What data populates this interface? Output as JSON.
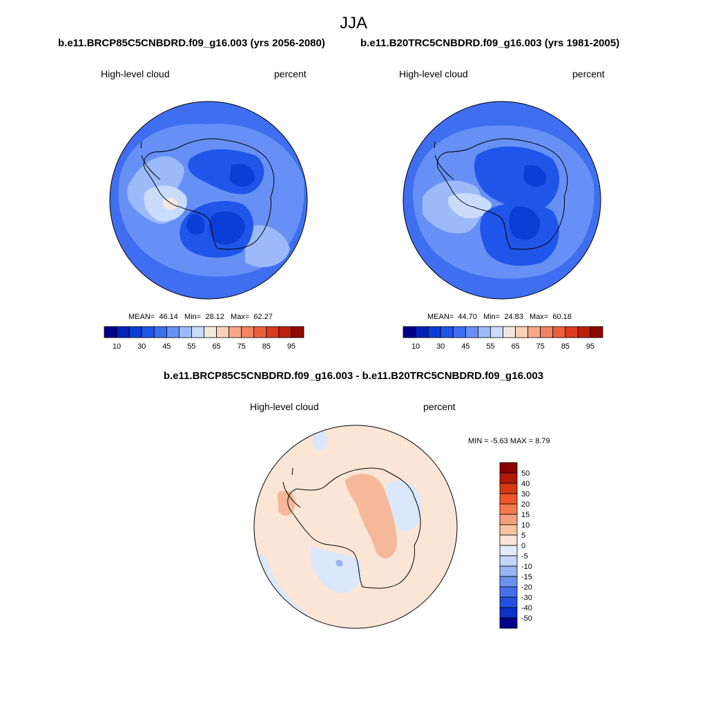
{
  "season": "JJA",
  "panels": [
    {
      "title": "b.e11.BRCP85C5CNBDRD.f09_g16.003 (yrs 2056-2080)",
      "variable": "High-level cloud",
      "units": "percent",
      "stats": {
        "mean_label": "MEAN=",
        "mean": "46.14",
        "min_label": "Min=",
        "min": "28.12",
        "max_label": "Max=",
        "max": "62.27"
      }
    },
    {
      "title": "b.e11.B20TRC5CNBDRD.f09_g16.003 (yrs 1981-2005)",
      "variable": "High-level cloud",
      "units": "percent",
      "stats": {
        "mean_label": "MEAN=",
        "mean": "44.70",
        "min_label": "Min=",
        "min": "24.83",
        "max_label": "Max=",
        "max": "60.18"
      }
    }
  ],
  "diff": {
    "title": "b.e11.BRCP85C5CNBDRD.f09_g16.003 - b.e11.B20TRC5CNBDRD.f09_g16.003",
    "variable": "High-level cloud",
    "units": "percent",
    "stats": "MIN =  -5.63 MAX =   8.79"
  },
  "colorbar_main": {
    "colors": [
      "#00008b",
      "#0022b8",
      "#0a3ed6",
      "#1f55e8",
      "#3d70f0",
      "#6690f5",
      "#9cb9f8",
      "#cadcfb",
      "#f3e8e0",
      "#fbd0b8",
      "#f6a888",
      "#f28462",
      "#ec5f3e",
      "#dc3a1e",
      "#bb1f0c",
      "#8e0a03"
    ],
    "tick_labels": [
      "10",
      "30",
      "45",
      "55",
      "65",
      "75",
      "85",
      "95"
    ]
  },
  "colorbar_diff": {
    "colors": [
      "#8b0000",
      "#b01a06",
      "#d33a10",
      "#ef5528",
      "#f57b4c",
      "#f6a080",
      "#f7c4a4",
      "#fbe5d6",
      "#e3ecfb",
      "#c2d6f7",
      "#96b5f2",
      "#6d92ee",
      "#4470eb",
      "#2350e0",
      "#0d30c8",
      "#00008b"
    ],
    "tick_labels": [
      "50",
      "40",
      "30",
      "20",
      "15",
      "10",
      "5",
      "0",
      "-5",
      "-10",
      "-15",
      "-20",
      "-30",
      "-40",
      "-50"
    ]
  },
  "map_shading": {
    "left": {
      "outer": "#3f6ef0",
      "mid": "#6690f5",
      "inner_light": "#9cb9f8",
      "pale": "#cadcfb",
      "peach": "#f3e8e0",
      "dark": "#1f55e8",
      "darkest": "#0a3ed6"
    },
    "right": {
      "outer": "#3f6ef0",
      "mid": "#6690f5",
      "inner_light": "#9cb9f8",
      "pale": "#cadcfb",
      "dark": "#1f55e8",
      "darkest": "#0a3ed6"
    },
    "diff": {
      "base": "#fbe5d6",
      "blue": "#dbe7fa",
      "red": "#f6b89a",
      "deep_blue": "#96b5f2"
    }
  }
}
